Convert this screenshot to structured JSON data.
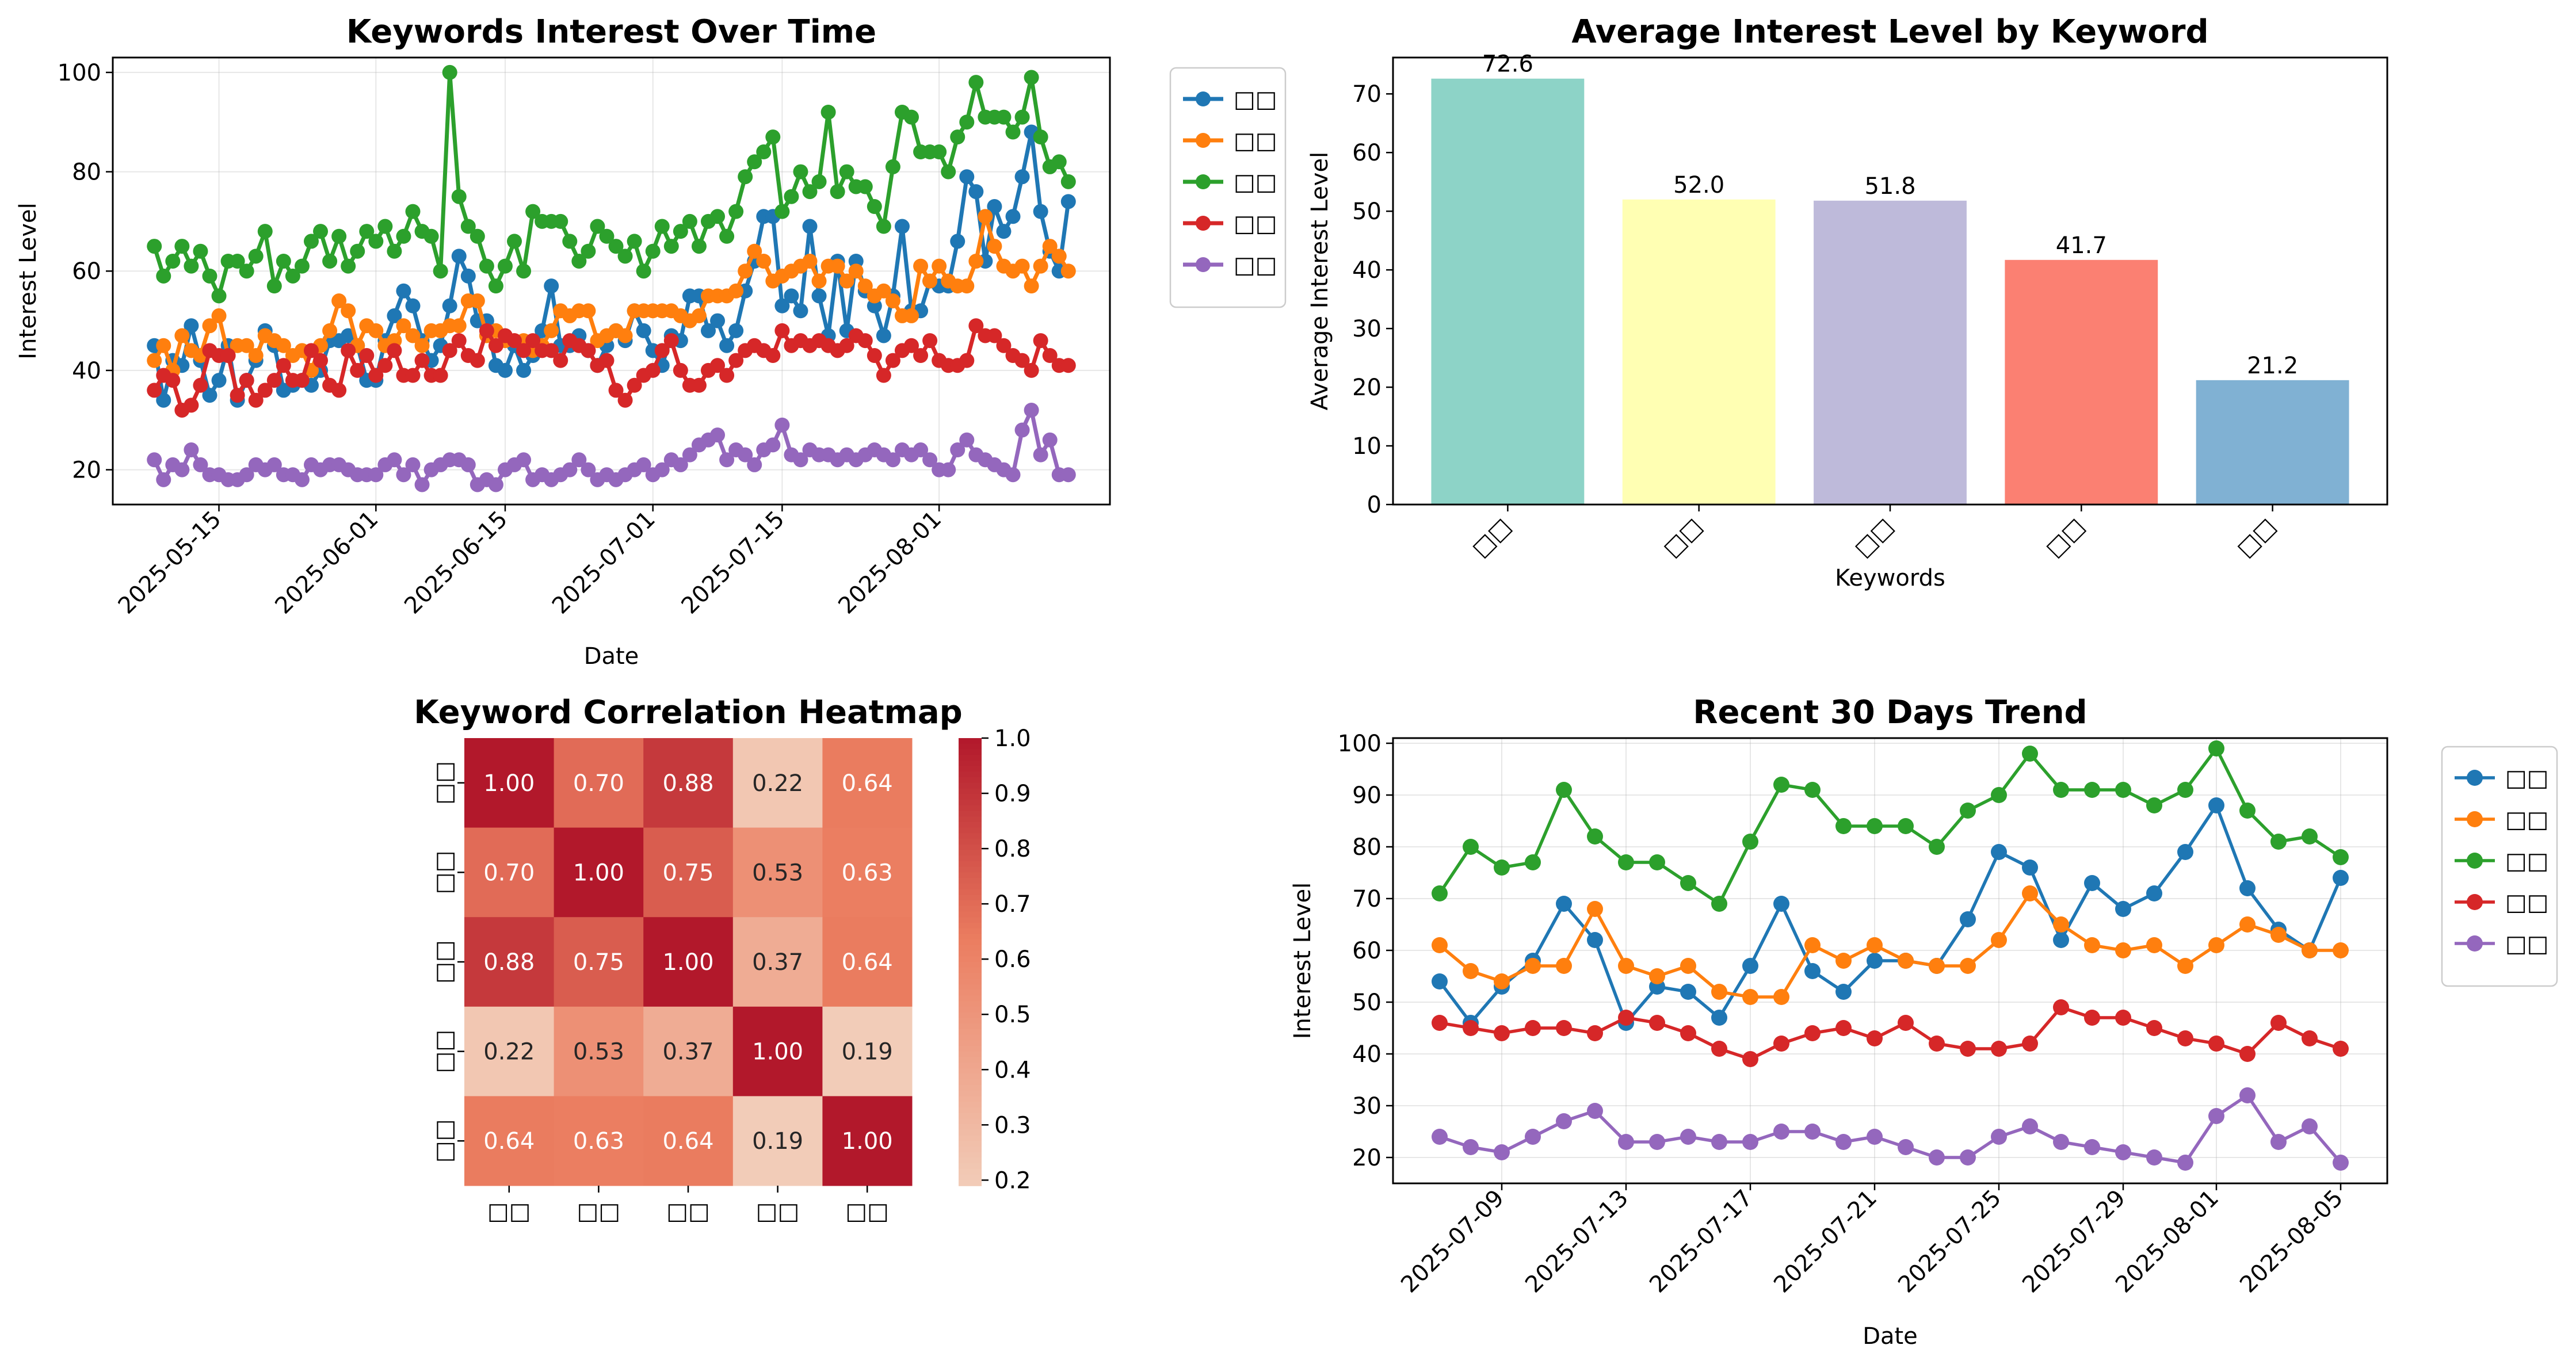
{
  "figure": {
    "colors": {
      "blue": "#1f77b4",
      "orange": "#ff7f0e",
      "green": "#2ca02c",
      "red": "#d62728",
      "purple": "#9467bd"
    },
    "keywords": [
      "□□",
      "□□",
      "□□",
      "□□",
      "□□"
    ]
  },
  "chart_data": [
    {
      "type": "line",
      "title": "Keywords Interest Over Time",
      "xlabel": "Date",
      "ylabel": "Interest Level",
      "x_start": "2025-05-08",
      "x_end": "2025-08-05",
      "x_ticks": [
        "2025-05-15",
        "2025-06-01",
        "2025-06-15",
        "2025-07-01",
        "2025-07-15",
        "2025-08-01"
      ],
      "y_ticks": [
        20,
        40,
        60,
        80,
        100
      ],
      "ylim": [
        13,
        103
      ],
      "grid": true,
      "legend_position": "outside upper right",
      "series": [
        {
          "name": "□□",
          "color": "#1f77b4",
          "values": [
            45,
            34,
            42,
            41,
            49,
            42,
            35,
            38,
            45,
            34,
            38,
            42,
            48,
            45,
            36,
            37,
            38,
            37,
            40,
            46,
            46,
            47,
            45,
            38,
            38,
            46,
            51,
            56,
            53,
            46,
            42,
            45,
            53,
            63,
            59,
            50,
            50,
            41,
            40,
            45,
            40,
            43,
            48,
            57,
            45,
            45,
            47,
            44,
            41,
            45,
            48,
            46,
            52,
            48,
            44,
            41,
            47,
            46,
            55,
            55,
            48,
            50,
            45,
            48,
            56,
            62,
            71,
            71,
            53,
            55,
            52,
            69,
            55,
            47,
            62,
            48,
            62,
            56,
            53,
            47,
            55,
            69,
            52,
            52,
            58,
            57,
            57,
            66,
            79,
            76,
            62,
            73,
            68,
            71,
            79,
            88,
            72,
            64,
            60,
            74
          ]
        },
        {
          "name": "□□",
          "color": "#ff7f0e",
          "values": [
            42,
            45,
            40,
            47,
            44,
            43,
            49,
            51,
            43,
            45,
            45,
            43,
            47,
            46,
            45,
            43,
            44,
            40,
            45,
            48,
            54,
            52,
            45,
            49,
            48,
            45,
            46,
            49,
            47,
            45,
            48,
            48,
            49,
            49,
            54,
            54,
            47,
            48,
            46,
            46,
            46,
            44,
            45,
            48,
            52,
            51,
            52,
            52,
            46,
            47,
            48,
            47,
            52,
            52,
            52,
            52,
            52,
            51,
            50,
            51,
            55,
            55,
            55,
            56,
            60,
            64,
            62,
            58,
            59,
            60,
            61,
            62,
            58,
            61,
            61,
            58,
            60,
            57,
            55,
            56,
            54,
            51,
            51,
            61,
            58,
            61,
            58,
            57,
            57,
            62,
            71,
            65,
            61,
            60,
            61,
            57,
            61,
            65,
            63,
            60
          ]
        },
        {
          "name": "□□",
          "color": "#2ca02c",
          "values": [
            65,
            59,
            62,
            65,
            61,
            64,
            59,
            55,
            62,
            62,
            60,
            63,
            68,
            57,
            62,
            59,
            61,
            66,
            68,
            62,
            67,
            61,
            64,
            68,
            66,
            69,
            64,
            67,
            72,
            68,
            67,
            60,
            100,
            75,
            69,
            67,
            61,
            57,
            61,
            66,
            60,
            72,
            70,
            70,
            70,
            66,
            62,
            64,
            69,
            67,
            65,
            63,
            66,
            60,
            64,
            69,
            65,
            68,
            70,
            65,
            70,
            71,
            67,
            72,
            79,
            82,
            84,
            87,
            72,
            75,
            80,
            76,
            78,
            92,
            76,
            80,
            77,
            77,
            73,
            69,
            81,
            92,
            91,
            84,
            84,
            84,
            80,
            87,
            90,
            98,
            91,
            91,
            91,
            88,
            91,
            99,
            87,
            81,
            82,
            78
          ]
        },
        {
          "name": "□□",
          "color": "#d62728",
          "values": [
            36,
            39,
            38,
            32,
            33,
            37,
            44,
            43,
            43,
            35,
            38,
            34,
            36,
            38,
            41,
            38,
            38,
            44,
            42,
            37,
            36,
            44,
            40,
            43,
            39,
            41,
            44,
            39,
            39,
            42,
            39,
            39,
            44,
            46,
            43,
            42,
            48,
            45,
            47,
            46,
            44,
            46,
            44,
            44,
            42,
            46,
            45,
            44,
            41,
            42,
            36,
            34,
            37,
            39,
            40,
            44,
            46,
            40,
            37,
            37,
            40,
            41,
            39,
            42,
            44,
            45,
            44,
            43,
            48,
            45,
            46,
            45,
            46,
            45,
            44,
            45,
            47,
            46,
            43,
            39,
            42,
            44,
            45,
            43,
            46,
            42,
            41,
            41,
            42,
            49,
            47,
            47,
            45,
            43,
            42,
            40,
            46,
            43,
            41,
            41
          ]
        },
        {
          "name": "□□",
          "color": "#9467bd",
          "values": [
            22,
            18,
            21,
            20,
            24,
            21,
            19,
            19,
            18,
            18,
            19,
            21,
            20,
            21,
            19,
            19,
            18,
            21,
            20,
            21,
            21,
            20,
            19,
            19,
            19,
            21,
            22,
            19,
            21,
            17,
            20,
            21,
            22,
            22,
            21,
            17,
            18,
            17,
            20,
            21,
            22,
            18,
            19,
            18,
            19,
            20,
            22,
            20,
            18,
            19,
            18,
            19,
            20,
            21,
            19,
            20,
            22,
            21,
            23,
            25,
            26,
            27,
            22,
            24,
            23,
            21,
            24,
            25,
            29,
            23,
            22,
            24,
            23,
            23,
            22,
            23,
            22,
            23,
            24,
            23,
            22,
            24,
            23,
            24,
            22,
            20,
            20,
            24,
            26,
            23,
            22,
            21,
            20,
            19,
            28,
            32,
            23,
            26,
            19,
            19
          ]
        }
      ]
    },
    {
      "type": "bar",
      "title": "Average Interest Level by Keyword",
      "xlabel": "Keywords",
      "ylabel": "Average Interest Level",
      "categories": [
        "□□",
        "□□",
        "□□",
        "□□",
        "□□"
      ],
      "values": [
        72.6,
        52.0,
        51.8,
        41.7,
        21.2
      ],
      "value_labels": [
        "72.6",
        "52.0",
        "51.8",
        "41.7",
        "21.2"
      ],
      "colors": [
        "#8dd3c7",
        "#ffffb3",
        "#bebada",
        "#fb8072",
        "#80b1d3"
      ],
      "ylim": [
        0,
        76.2
      ],
      "y_ticks": [
        0,
        10,
        20,
        30,
        40,
        50,
        60,
        70
      ]
    },
    {
      "type": "heatmap",
      "title": "Keyword Correlation Heatmap",
      "row_labels": [
        "□□",
        "□□",
        "□□",
        "□□",
        "□□"
      ],
      "col_labels": [
        "□□",
        "□□",
        "□□",
        "□□",
        "□□"
      ],
      "matrix": [
        [
          1.0,
          0.7,
          0.88,
          0.22,
          0.64
        ],
        [
          0.7,
          1.0,
          0.75,
          0.53,
          0.63
        ],
        [
          0.88,
          0.75,
          1.0,
          0.37,
          0.64
        ],
        [
          0.22,
          0.53,
          0.37,
          1.0,
          0.19
        ],
        [
          0.64,
          0.63,
          0.64,
          0.19,
          1.0
        ]
      ],
      "cell_labels": [
        [
          "1.00",
          "0.70",
          "0.88",
          "0.22",
          "0.64"
        ],
        [
          "0.70",
          "1.00",
          "0.75",
          "0.53",
          "0.63"
        ],
        [
          "0.88",
          "0.75",
          "1.00",
          "0.37",
          "0.64"
        ],
        [
          "0.22",
          "0.53",
          "0.37",
          "1.00",
          "0.19"
        ],
        [
          "0.64",
          "0.63",
          "0.64",
          "0.19",
          "1.00"
        ]
      ],
      "colorbar_range": [
        0.19,
        1.0
      ],
      "colorbar_ticks": [
        "0.2",
        "0.3",
        "0.4",
        "0.5",
        "0.6",
        "0.7",
        "0.8",
        "0.9",
        "1.0"
      ],
      "colormap": "RdBu_r"
    },
    {
      "type": "line",
      "title": "Recent 30 Days Trend",
      "xlabel": "Date",
      "ylabel": "Interest Level",
      "x_start": "2025-07-07",
      "x_ticks": [
        "2025-07-09",
        "2025-07-13",
        "2025-07-17",
        "2025-07-21",
        "2025-07-25",
        "2025-07-29",
        "2025-08-01",
        "2025-08-05"
      ],
      "y_ticks": [
        20,
        30,
        40,
        50,
        60,
        70,
        80,
        90,
        100
      ],
      "ylim": [
        15,
        101
      ],
      "grid": true,
      "legend_position": "outside upper right",
      "series": [
        {
          "name": "□□",
          "color": "#1f77b4",
          "values": [
            54,
            46,
            53,
            58,
            69,
            62,
            46,
            53,
            52,
            47,
            57,
            69,
            56,
            52,
            58,
            58,
            57,
            66,
            79,
            76,
            62,
            73,
            68,
            71,
            79,
            88,
            72,
            64,
            60,
            74
          ]
        },
        {
          "name": "□□",
          "color": "#ff7f0e",
          "values": [
            61,
            56,
            54,
            57,
            57,
            68,
            57,
            55,
            57,
            52,
            51,
            51,
            61,
            58,
            61,
            58,
            57,
            57,
            62,
            71,
            65,
            61,
            60,
            61,
            57,
            61,
            65,
            63,
            60,
            60
          ]
        },
        {
          "name": "□□",
          "color": "#2ca02c",
          "values": [
            71,
            80,
            76,
            77,
            91,
            82,
            77,
            77,
            73,
            69,
            81,
            92,
            91,
            84,
            84,
            84,
            80,
            87,
            90,
            98,
            91,
            91,
            91,
            88,
            91,
            99,
            87,
            81,
            82,
            78
          ]
        },
        {
          "name": "□□",
          "color": "#d62728",
          "values": [
            46,
            45,
            44,
            45,
            45,
            44,
            47,
            46,
            44,
            41,
            39,
            42,
            44,
            45,
            43,
            46,
            42,
            41,
            41,
            42,
            49,
            47,
            47,
            45,
            43,
            42,
            40,
            46,
            43,
            41
          ]
        },
        {
          "name": "□□",
          "color": "#9467bd",
          "values": [
            24,
            22,
            21,
            24,
            27,
            29,
            23,
            23,
            24,
            23,
            23,
            25,
            25,
            23,
            24,
            22,
            20,
            20,
            24,
            26,
            23,
            22,
            21,
            20,
            19,
            28,
            32,
            23,
            26,
            19
          ]
        }
      ]
    }
  ]
}
